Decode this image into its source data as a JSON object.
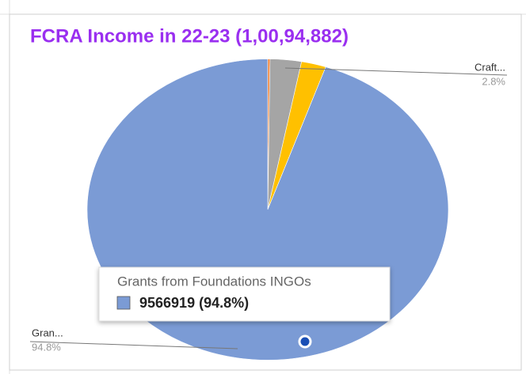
{
  "chart_data": {
    "type": "pie",
    "title": "FCRA Income in 22-23 (1,00,94,882)",
    "labels": [
      null,
      "Craft...",
      null,
      "Gran..."
    ],
    "values": [
      0.2,
      2.8,
      2.2,
      94.8
    ],
    "value_labels": [
      null,
      "2.8%",
      null,
      "94.8%"
    ],
    "colors": [
      "#ed7d31",
      "#a5a5a5",
      "#ffc000",
      "#7b9bd5"
    ],
    "tooltip": {
      "title": "Grants from Foundations INGOs",
      "text": "9566919 (94.8%)"
    }
  }
}
